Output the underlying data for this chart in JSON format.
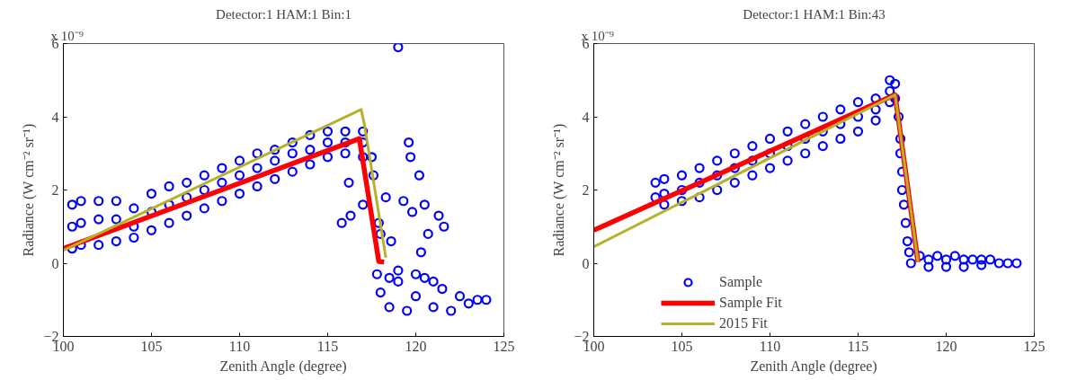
{
  "chart_data": [
    {
      "type": "scatter",
      "title": "Detector:1 HAM:1 Bin:1",
      "xlabel": "Zenith Angle (degree)",
      "ylabel": "Radiance (W cm⁻² sr⁻¹)",
      "annotations": [
        "x 10⁻⁹"
      ],
      "xlim": [
        100,
        125
      ],
      "xticks": [
        100,
        105,
        110,
        115,
        120,
        125
      ],
      "ylim": [
        -2,
        6
      ],
      "yticks": [
        -2,
        0,
        2,
        4,
        6
      ],
      "legend": false,
      "series": [
        {
          "marker": "circle",
          "color": "#0000ff",
          "x": [
            100.5,
            100.5,
            100.5,
            101,
            101,
            101,
            102,
            102,
            102,
            103,
            103,
            103,
            104,
            104,
            104,
            105,
            105,
            105,
            106,
            106,
            106,
            107,
            107,
            107,
            108,
            108,
            108,
            109,
            109,
            109,
            110,
            110,
            110,
            111,
            111,
            111,
            112,
            112,
            112,
            113,
            113,
            113,
            114,
            114,
            114,
            115,
            115,
            115,
            116,
            116,
            116,
            117,
            117,
            117,
            119.0,
            116.2,
            115.8,
            116.3,
            117.0,
            117.5,
            117.6,
            118.3,
            118.6,
            119.3,
            119.8,
            119.6,
            119.7,
            120.2,
            120.5,
            121.3,
            121.6,
            120.7,
            120.3,
            117.9,
            118.0,
            117.8,
            118,
            118.5,
            119,
            119.5,
            120,
            120.5,
            121,
            121.5,
            122,
            122.5,
            123,
            123.5,
            124,
            119,
            120,
            121,
            118.5
          ],
          "values": [
            1.6,
            1.0,
            0.4,
            1.7,
            1.1,
            0.5,
            1.7,
            1.2,
            0.5,
            1.7,
            1.2,
            0.6,
            1.5,
            1.0,
            0.7,
            1.9,
            1.4,
            0.9,
            2.1,
            1.6,
            1.1,
            2.2,
            1.8,
            1.3,
            2.4,
            2.0,
            1.5,
            2.6,
            2.2,
            1.7,
            2.8,
            2.4,
            1.9,
            3.0,
            2.6,
            2.1,
            3.1,
            2.8,
            2.3,
            3.3,
            3.0,
            2.5,
            3.5,
            3.1,
            2.7,
            3.6,
            3.3,
            2.9,
            3.6,
            3.3,
            3.0,
            3.6,
            3.3,
            2.9,
            5.9,
            2.2,
            1.1,
            1.3,
            1.6,
            2.9,
            2.4,
            1.8,
            0.6,
            1.7,
            1.4,
            3.3,
            2.9,
            2.4,
            1.6,
            1.3,
            1.0,
            0.8,
            0.3,
            1.1,
            0.8,
            -0.3,
            -0.8,
            -1.2,
            -0.5,
            -1.3,
            -0.9,
            -0.4,
            -1.2,
            -0.7,
            -1.3,
            -0.9,
            -1.1,
            -1.0,
            -1.0,
            -0.2,
            -0.3,
            -0.5,
            -0.4
          ]
        },
        {
          "type": "line",
          "color": "#ff0000",
          "x": [
            100,
            116.8,
            117.9,
            118.2
          ],
          "values": [
            0.4,
            3.4,
            0.05,
            0.03
          ]
        },
        {
          "type": "line",
          "color": "#b5b22a",
          "x": [
            100,
            116.9,
            117.1,
            118.3
          ],
          "values": [
            0.35,
            4.2,
            3.75,
            0.15
          ]
        }
      ]
    },
    {
      "type": "scatter",
      "title": "Detector:1 HAM:1 Bin:43",
      "xlabel": "Zenith Angle (degree)",
      "ylabel": "Radiance (W cm⁻² sr⁻¹)",
      "annotations": [
        "x 10⁻⁹"
      ],
      "xlim": [
        100,
        125
      ],
      "xticks": [
        100,
        105,
        110,
        115,
        120,
        125
      ],
      "ylim": [
        -2,
        6
      ],
      "yticks": [
        -2,
        0,
        2,
        4,
        6
      ],
      "legend": "bottom left",
      "series": [
        {
          "marker": "circle",
          "name": "Sample",
          "color": "#0000ff",
          "x": [
            103.5,
            103.5,
            104,
            104,
            104,
            105,
            105,
            105,
            106,
            106,
            106,
            107,
            107,
            107,
            108,
            108,
            108,
            109,
            109,
            109,
            110,
            110,
            110,
            111,
            111,
            111,
            112,
            112,
            112,
            113,
            113,
            113,
            114,
            114,
            114,
            115,
            115,
            115,
            116,
            116,
            116,
            116.8,
            116.8,
            116.8,
            117.1,
            117.1,
            117.3,
            117.4,
            117.4,
            117.5,
            117.5,
            117.6,
            117.7,
            117.8,
            117.9,
            118.0,
            118.5,
            119,
            119.5,
            120,
            120.5,
            121,
            121.5,
            122,
            122.5,
            123,
            123.5,
            124,
            119,
            120,
            121,
            122
          ],
          "values": [
            2.2,
            1.8,
            2.3,
            1.9,
            1.6,
            2.4,
            2.0,
            1.7,
            2.6,
            2.2,
            1.8,
            2.8,
            2.4,
            2.0,
            3.0,
            2.6,
            2.2,
            3.2,
            2.8,
            2.4,
            3.4,
            3.0,
            2.6,
            3.6,
            3.2,
            2.8,
            3.8,
            3.4,
            3.0,
            4.0,
            3.6,
            3.2,
            4.2,
            3.8,
            3.4,
            4.4,
            4.0,
            3.6,
            4.5,
            4.2,
            3.9,
            5.0,
            4.7,
            4.4,
            4.9,
            4.5,
            4.0,
            3.4,
            3.0,
            2.5,
            2.0,
            1.6,
            1.1,
            0.6,
            0.3,
            0.0,
            0.2,
            0.1,
            0.2,
            0.1,
            0.2,
            0.1,
            0.1,
            0.1,
            0.1,
            0.0,
            0.0,
            0.0,
            -0.1,
            -0.1,
            -0.1,
            -0.05
          ]
        },
        {
          "type": "line",
          "name": "Sample Fit",
          "color": "#ff0000",
          "x": [
            100,
            117.1,
            118.4
          ],
          "values": [
            0.9,
            4.6,
            0.03
          ]
        },
        {
          "type": "line",
          "name": "2015 Fit",
          "color": "#b5b22a",
          "x": [
            100,
            117.1,
            118.4
          ],
          "values": [
            0.45,
            4.6,
            0.03
          ]
        }
      ]
    }
  ]
}
